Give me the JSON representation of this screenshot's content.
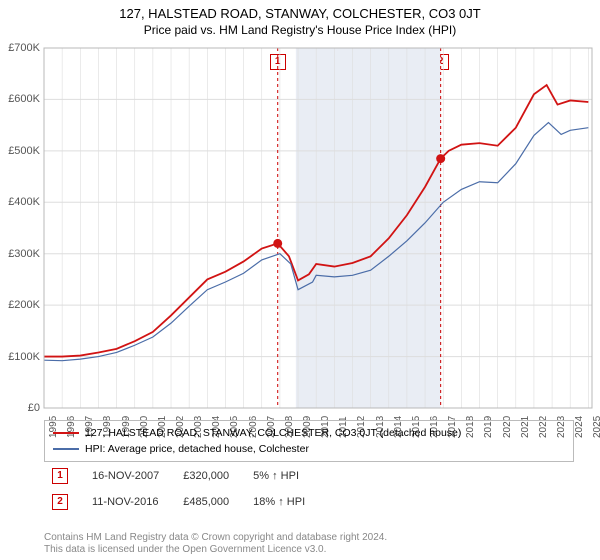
{
  "title_line1": "127, HALSTEAD ROAD, STANWAY, COLCHESTER, CO3 0JT",
  "title_line2": "Price paid vs. HM Land Registry's House Price Index (HPI)",
  "chart": {
    "type": "line",
    "background_color": "#ffffff",
    "shaded_range": {
      "x0": 2008.88,
      "x1": 2016.86,
      "fill": "#e9edf4"
    },
    "border_color": "#b8b8b8",
    "grid_color": "#dddddd",
    "xlim": [
      1995,
      2025.2
    ],
    "ylim": [
      0,
      700000
    ],
    "ytick_step": 100000,
    "yticks": [
      "£0",
      "£100K",
      "£200K",
      "£300K",
      "£400K",
      "£500K",
      "£600K",
      "£700K"
    ],
    "xticks": [
      1995,
      1996,
      1997,
      1998,
      1999,
      2000,
      2001,
      2002,
      2003,
      2004,
      2005,
      2006,
      2007,
      2008,
      2009,
      2010,
      2011,
      2012,
      2013,
      2014,
      2015,
      2016,
      2017,
      2018,
      2019,
      2020,
      2021,
      2022,
      2023,
      2024,
      2025
    ],
    "tick_fontsize": 10,
    "series": [
      {
        "name": "red",
        "color": "#d11313",
        "width": 1.8,
        "data": [
          [
            1995,
            100000
          ],
          [
            1996,
            100000
          ],
          [
            1997,
            102000
          ],
          [
            1998,
            108000
          ],
          [
            1999,
            115000
          ],
          [
            2000,
            130000
          ],
          [
            2001,
            148000
          ],
          [
            2002,
            180000
          ],
          [
            2003,
            215000
          ],
          [
            2004,
            250000
          ],
          [
            2005,
            265000
          ],
          [
            2006,
            285000
          ],
          [
            2007,
            310000
          ],
          [
            2007.88,
            320000
          ],
          [
            2008.5,
            295000
          ],
          [
            2009,
            248000
          ],
          [
            2009.6,
            260000
          ],
          [
            2010,
            280000
          ],
          [
            2011,
            275000
          ],
          [
            2012,
            282000
          ],
          [
            2013,
            295000
          ],
          [
            2014,
            330000
          ],
          [
            2015,
            375000
          ],
          [
            2016,
            430000
          ],
          [
            2016.86,
            485000
          ],
          [
            2017.3,
            500000
          ],
          [
            2018,
            512000
          ],
          [
            2019,
            515000
          ],
          [
            2020,
            510000
          ],
          [
            2021,
            545000
          ],
          [
            2022,
            610000
          ],
          [
            2022.7,
            628000
          ],
          [
            2023.3,
            590000
          ],
          [
            2024,
            598000
          ],
          [
            2025,
            595000
          ]
        ]
      },
      {
        "name": "blue",
        "color": "#4b6da8",
        "width": 1.2,
        "data": [
          [
            1995,
            93000
          ],
          [
            1996,
            92000
          ],
          [
            1997,
            95000
          ],
          [
            1998,
            100000
          ],
          [
            1999,
            108000
          ],
          [
            2000,
            122000
          ],
          [
            2001,
            138000
          ],
          [
            2002,
            165000
          ],
          [
            2003,
            198000
          ],
          [
            2004,
            230000
          ],
          [
            2005,
            245000
          ],
          [
            2006,
            262000
          ],
          [
            2007,
            288000
          ],
          [
            2008,
            300000
          ],
          [
            2008.6,
            280000
          ],
          [
            2009,
            230000
          ],
          [
            2009.8,
            245000
          ],
          [
            2010,
            258000
          ],
          [
            2011,
            255000
          ],
          [
            2012,
            258000
          ],
          [
            2013,
            268000
          ],
          [
            2014,
            295000
          ],
          [
            2015,
            325000
          ],
          [
            2016,
            360000
          ],
          [
            2017,
            400000
          ],
          [
            2018,
            425000
          ],
          [
            2019,
            440000
          ],
          [
            2020,
            438000
          ],
          [
            2021,
            475000
          ],
          [
            2022,
            530000
          ],
          [
            2022.8,
            555000
          ],
          [
            2023.5,
            532000
          ],
          [
            2024,
            540000
          ],
          [
            2025,
            545000
          ]
        ]
      }
    ],
    "markers": [
      {
        "id": "1",
        "x": 2007.88,
        "y": 320000,
        "vline_color": "#cc0000",
        "dot_color": "#d11313"
      },
      {
        "id": "2",
        "x": 2016.86,
        "y": 485000,
        "vline_color": "#cc0000",
        "dot_color": "#d11313"
      }
    ]
  },
  "legend": {
    "s1": {
      "color": "#d11313",
      "label": "127, HALSTEAD ROAD, STANWAY, COLCHESTER, CO3 0JT (detached house)"
    },
    "s2": {
      "color": "#4b6da8",
      "label": "HPI: Average price, detached house, Colchester"
    }
  },
  "transactions": [
    {
      "id": "1",
      "date": "16-NOV-2007",
      "price": "£320,000",
      "delta": "5% ↑ HPI"
    },
    {
      "id": "2",
      "date": "11-NOV-2016",
      "price": "£485,000",
      "delta": "18% ↑ HPI"
    }
  ],
  "license_line1": "Contains HM Land Registry data © Crown copyright and database right 2024.",
  "license_line2": "This data is licensed under the Open Government Licence v3.0."
}
